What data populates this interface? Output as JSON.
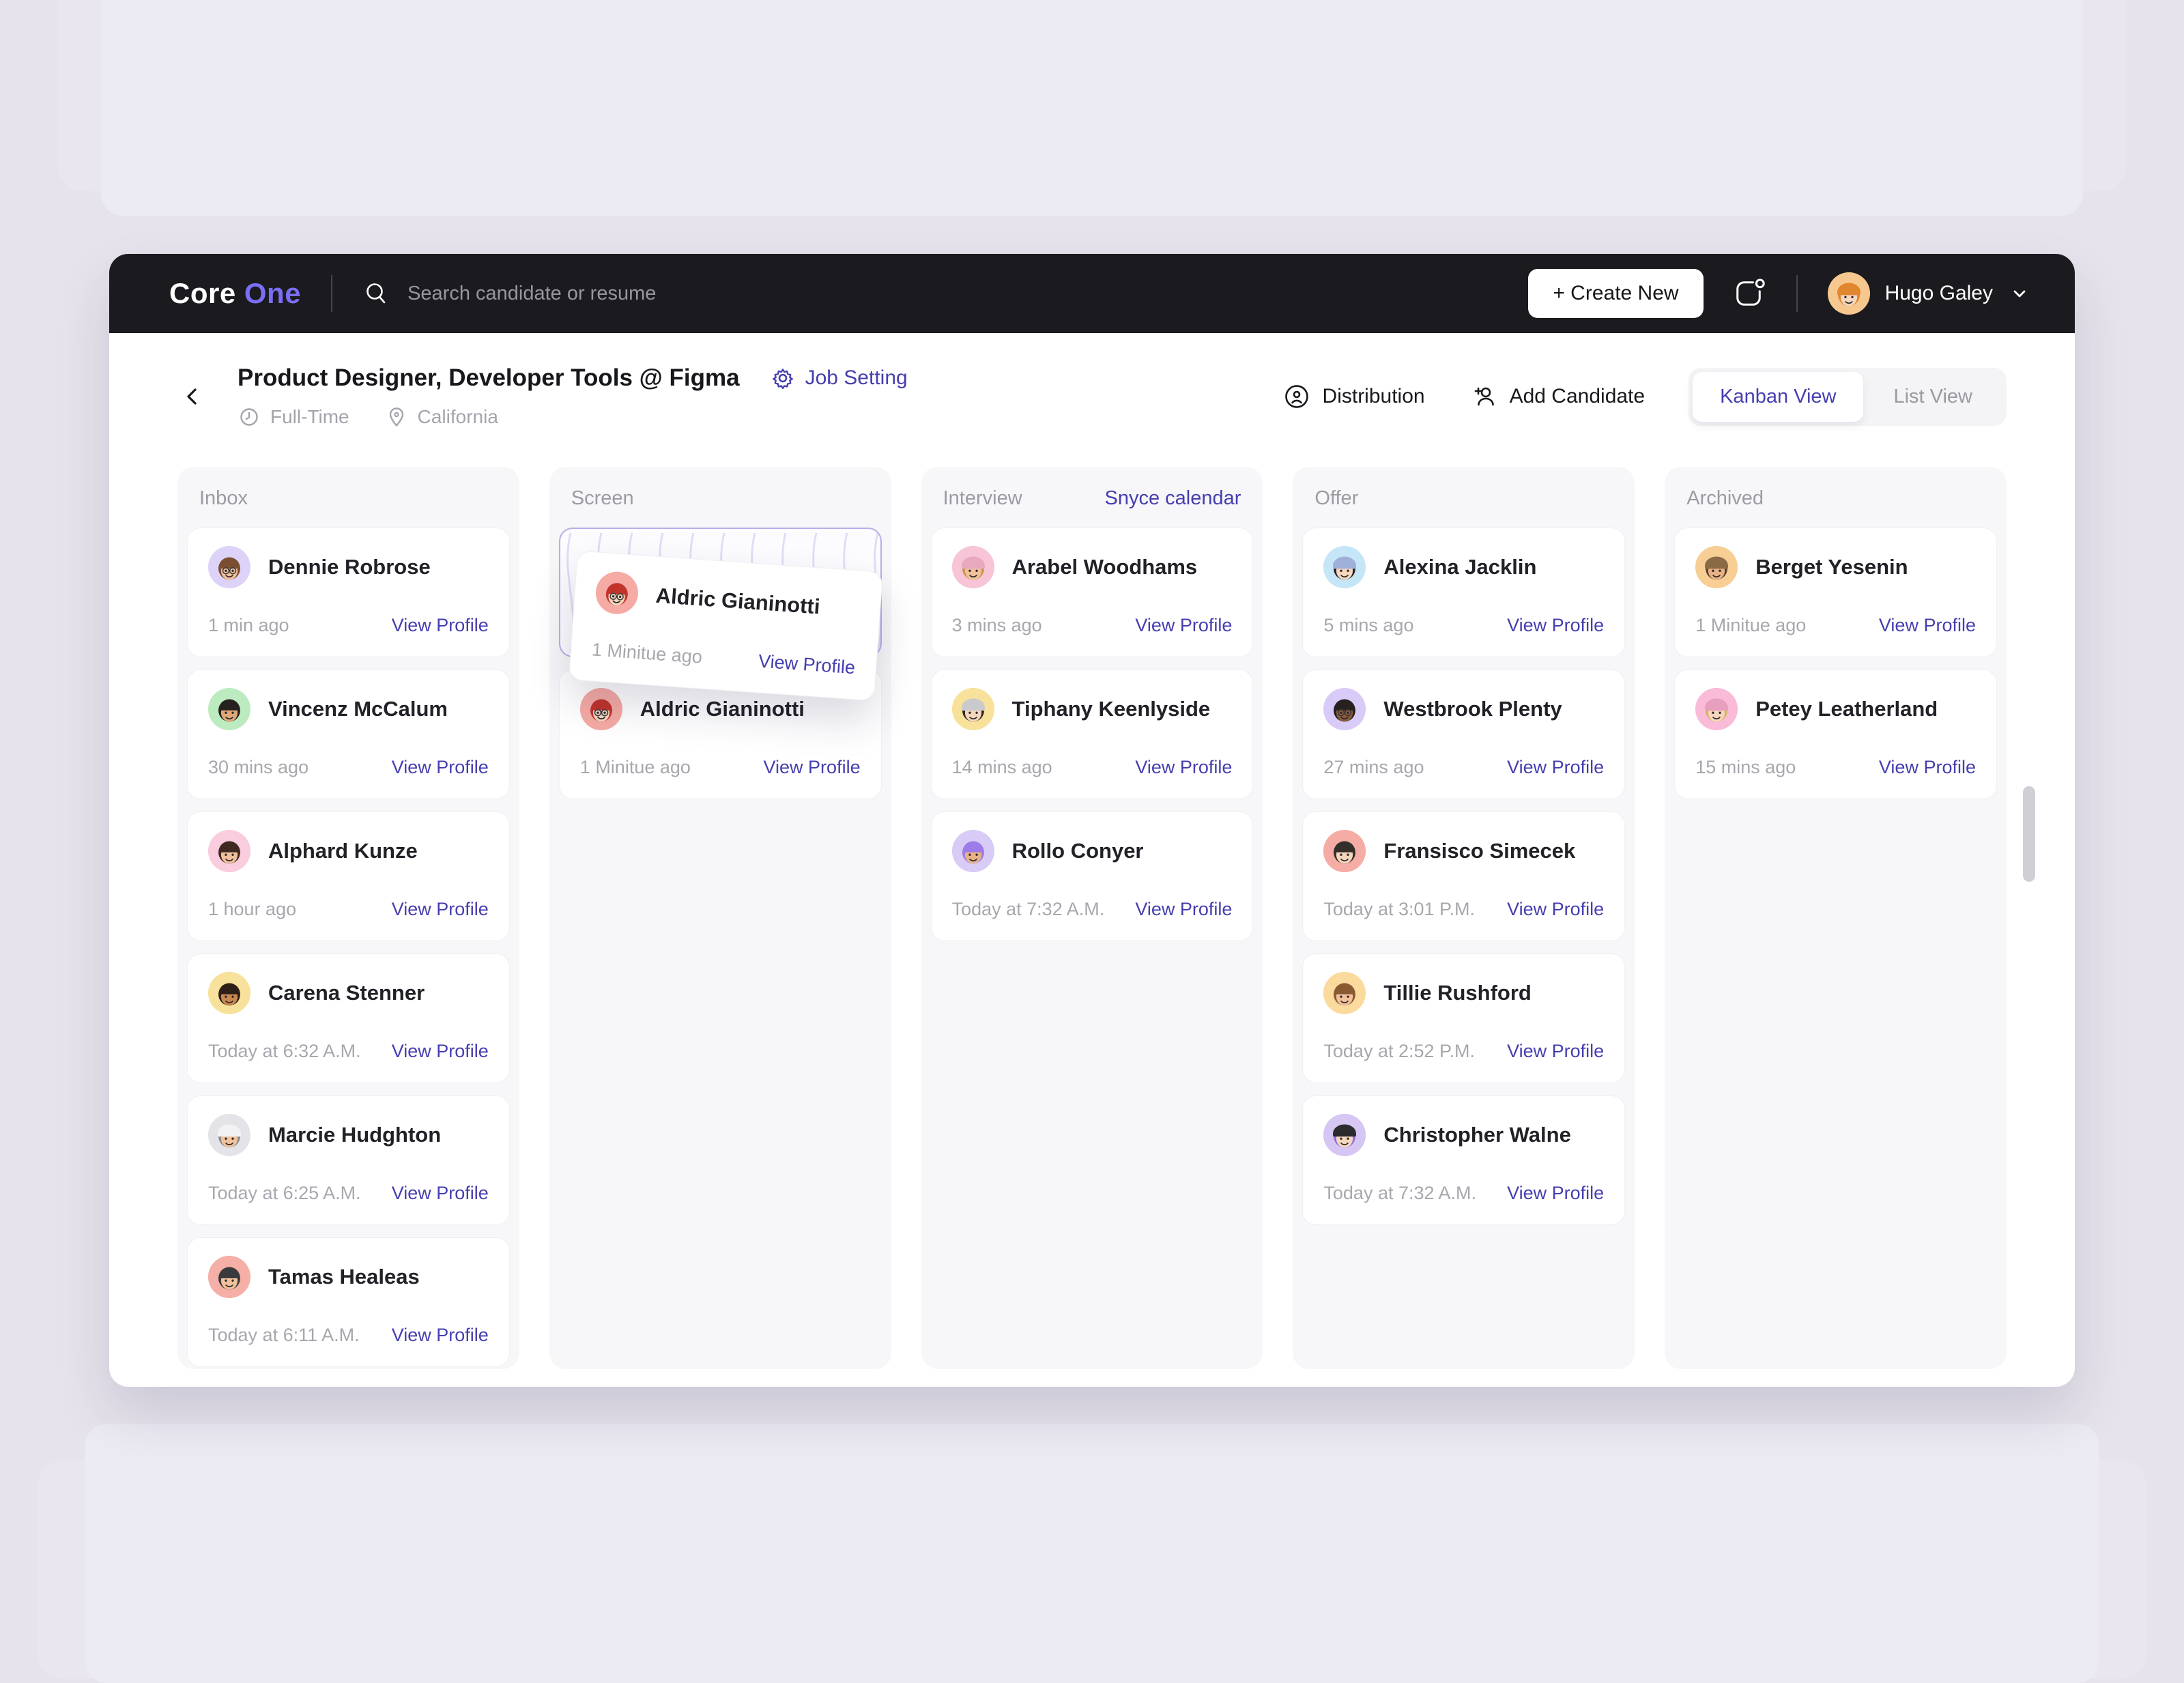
{
  "colors": {
    "accent_link": "#453EB0",
    "logo_accent": "#7A6EF6",
    "topbar_bg": "#1B1A1E",
    "column_bg": "#F7F6F8",
    "dropzone_border": "#B7AEEA"
  },
  "header": {
    "brand": {
      "first": "Core",
      "second": "One"
    },
    "search_placeholder": "Search candidate or resume",
    "create_button": "+ Create New",
    "user": {
      "name": "Hugo Galey",
      "avatar": {
        "bg": "#F6C890",
        "skin": "#F6D7BD",
        "hair": "#E0862F",
        "hat": "#E0862F"
      }
    }
  },
  "job": {
    "title": "Product Designer, Developer Tools @ Figma",
    "setting_label": "Job Setting",
    "type": "Full-Time",
    "location": "California",
    "actions": {
      "distribution": "Distribution",
      "add_candidate": "Add Candidate",
      "view_toggle": {
        "active": "Kanban View",
        "inactive": "List View"
      }
    }
  },
  "board": {
    "card_link_label": "View Profile",
    "columns": [
      {
        "title": "Inbox",
        "action": null,
        "cards": [
          {
            "name": "Dennie Robrose",
            "time": "1 min ago",
            "avatar": {
              "bg": "#DDD3F8",
              "skin": "#F2C19B",
              "hair": "#7A4E31",
              "glasses": true
            }
          },
          {
            "name": "Vincenz McCalum",
            "time": "30 mins ago",
            "avatar": {
              "bg": "#BDEBC0",
              "skin": "#E0A878",
              "hair": "#26211F"
            }
          },
          {
            "name": "Alphard Kunze",
            "time": "1 hour ago",
            "avatar": {
              "bg": "#F9CCDE",
              "skin": "#F2C19B",
              "hair": "#3E2A20"
            }
          },
          {
            "name": "Carena Stenner",
            "time": "Today at 6:32 A.M.",
            "avatar": {
              "bg": "#F8E19A",
              "skin": "#C98850",
              "hair": "#2E1F18"
            }
          },
          {
            "name": "Marcie Hudghton",
            "time": "Today at 6:25 A.M.",
            "avatar": {
              "bg": "#E4E4E8",
              "skin": "#F2C19B",
              "hair": "#8C8C91",
              "hat": "#F2F1F3"
            }
          },
          {
            "name": "Tamas Healeas",
            "time": "Today at 6:11 A.M.",
            "avatar": {
              "bg": "#F5AFA6",
              "skin": "#F2C19B",
              "hair": "#3A3A3C"
            }
          }
        ]
      },
      {
        "title": "Screen",
        "action": null,
        "dropzone": true,
        "drag_card": {
          "name": "Aldric Gianinotti",
          "time": "1 Minitue ago",
          "avatar": {
            "bg": "#F5ABA4",
            "skin": "#F6D7BD",
            "hair": "#C0342C",
            "glasses": true
          }
        },
        "cards": [
          {
            "name": "Aldric Gianinotti",
            "time": "1 Minitue ago",
            "avatar": {
              "bg": "#F5ABA4",
              "skin": "#F6D7BD",
              "hair": "#C0342C",
              "glasses": true
            }
          }
        ]
      },
      {
        "title": "Interview",
        "action": "Snyce calendar",
        "cards": [
          {
            "name": "Arabel Woodhams",
            "time": "3 mins ago",
            "avatar": {
              "bg": "#F8C4D7",
              "skin": "#F2C19B",
              "hair": "#C9953F",
              "hat": "#E8A9BF"
            }
          },
          {
            "name": "Tiphany Keenlyside",
            "time": "14 mins ago",
            "avatar": {
              "bg": "#F8E19A",
              "skin": "#F6D7BD",
              "hair": "#2A2322",
              "hat": "#C9C9CE"
            }
          },
          {
            "name": "Rollo Conyer",
            "time": "Today at 7:32 A.M.",
            "avatar": {
              "bg": "#D8CBF6",
              "skin": "#E8B286",
              "hair": "#9D7BE8"
            }
          }
        ]
      },
      {
        "title": "Offer",
        "action": null,
        "cards": [
          {
            "name": "Alexina Jacklin",
            "time": "5 mins ago",
            "avatar": {
              "bg": "#C5E6F7",
              "skin": "#F6D7BD",
              "hair": "#26211F",
              "hat": "#9FB0D8"
            }
          },
          {
            "name": "Westbrook Plenty",
            "time": "27 mins ago",
            "avatar": {
              "bg": "#D9CBF8",
              "skin": "#8C5A3B",
              "hair": "#26211F",
              "glasses": true
            }
          },
          {
            "name": "Fransisco Simecek",
            "time": "Today at 3:01 P.M.",
            "avatar": {
              "bg": "#F5ACA4",
              "skin": "#F6D7BD",
              "hair": "#33302C"
            }
          },
          {
            "name": "Tillie Rushford",
            "time": "Today at 2:52 P.M.",
            "avatar": {
              "bg": "#FBDA9E",
              "skin": "#F2C19B",
              "hair": "#8A5A33"
            }
          },
          {
            "name": "Christopher Walne",
            "time": "Today at 7:32 A.M.",
            "avatar": {
              "bg": "#D5C6F4",
              "skin": "#F6D7BD",
              "hair": "#8F6FD8",
              "hat": "#2B2B2E"
            }
          }
        ]
      },
      {
        "title": "Archived",
        "action": null,
        "cards": [
          {
            "name": "Berget Yesenin",
            "time": "1 Minitue ago",
            "avatar": {
              "bg": "#F7CE94",
              "skin": "#E8B286",
              "hair": "#5C4029",
              "hat": "#8A6A45"
            }
          },
          {
            "name": "Petey Leatherland",
            "time": "15 mins ago",
            "avatar": {
              "bg": "#F9BBD7",
              "skin": "#F6D7BD",
              "hair": "#D9B15E",
              "hat": "#E79FBE"
            }
          }
        ]
      }
    ]
  }
}
